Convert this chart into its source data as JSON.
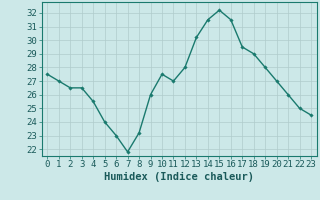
{
  "x": [
    0,
    1,
    2,
    3,
    4,
    5,
    6,
    7,
    8,
    9,
    10,
    11,
    12,
    13,
    14,
    15,
    16,
    17,
    18,
    19,
    20,
    21,
    22,
    23
  ],
  "y": [
    27.5,
    27.0,
    26.5,
    26.5,
    25.5,
    24.0,
    23.0,
    21.8,
    23.2,
    26.0,
    27.5,
    27.0,
    28.0,
    30.2,
    31.5,
    32.2,
    31.5,
    29.5,
    29.0,
    28.0,
    27.0,
    26.0,
    25.0,
    24.5
  ],
  "line_color": "#1a7a6e",
  "marker": "D",
  "marker_size": 1.8,
  "linewidth": 1.0,
  "bg_color": "#cce8e8",
  "grid_color": "#b0cccc",
  "xlabel": "Humidex (Indice chaleur)",
  "xlabel_fontsize": 7.5,
  "xlabel_weight": "bold",
  "ylabel_ticks": [
    22,
    23,
    24,
    25,
    26,
    27,
    28,
    29,
    30,
    31,
    32
  ],
  "xlim": [
    -0.5,
    23.5
  ],
  "ylim": [
    21.5,
    32.8
  ],
  "tick_fontsize": 6.5
}
